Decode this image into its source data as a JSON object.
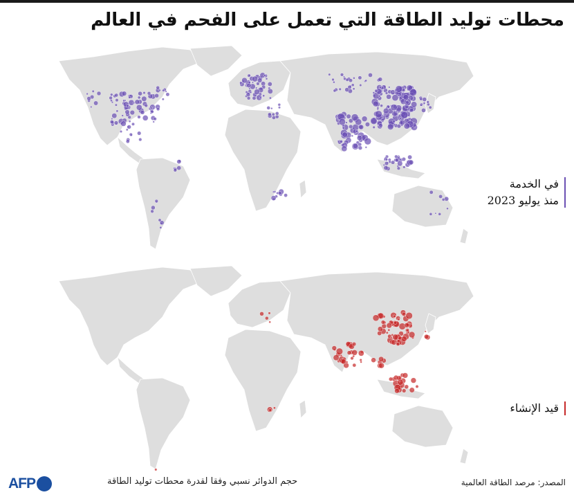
{
  "title": "محطات توليد الطاقة التي تعمل على الفحم في العالم",
  "panels": {
    "in_service": {
      "label_line1": "في الخدمة",
      "label_line2": "منذ يوليو 2023",
      "color": "#6a4fb3"
    },
    "under_construction": {
      "label_line1": "قيد الإنشاء",
      "color": "#c62828"
    }
  },
  "footer": {
    "note": "حجم الدوائر نسبي وفقا لقدرة محطات توليد الطاقة",
    "source": "المصدر: مرصد الطاقة العالمية",
    "logo": "AFP"
  }
}
